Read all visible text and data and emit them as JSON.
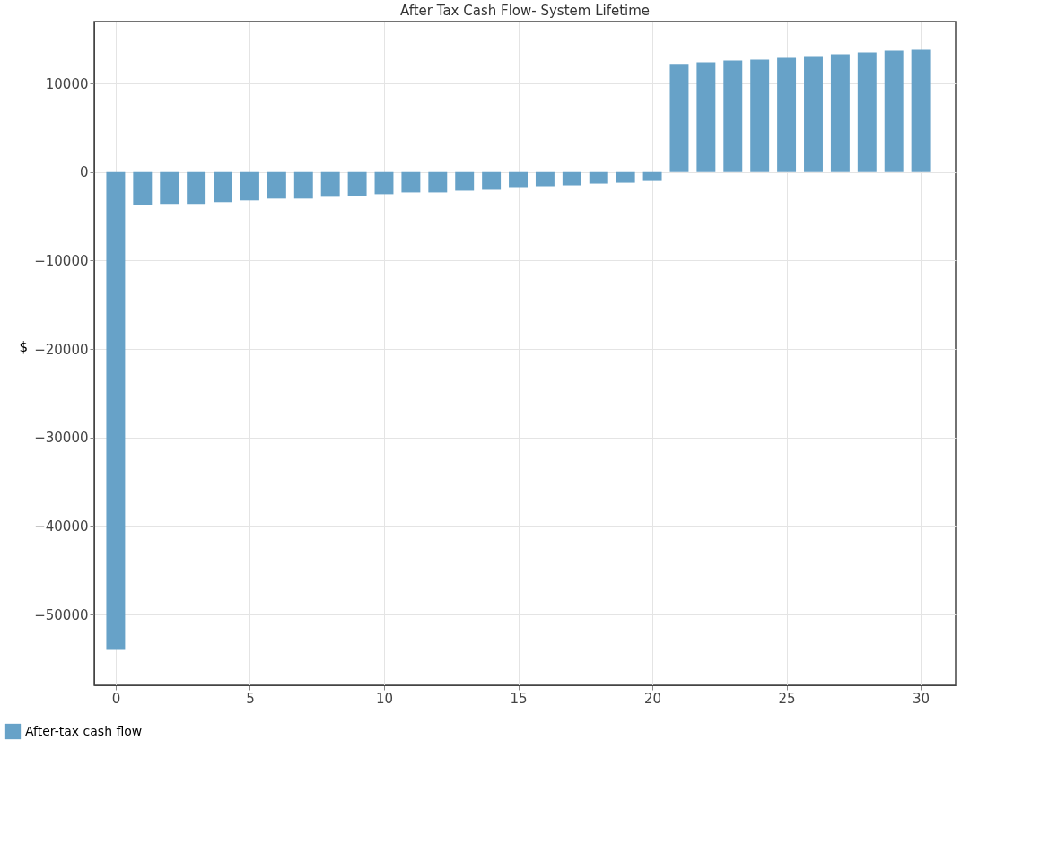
{
  "chart_data": {
    "type": "bar",
    "title": "After Tax Cash Flow- System Lifetime",
    "ylabel": "$",
    "x": [
      0,
      1,
      2,
      3,
      4,
      5,
      6,
      7,
      8,
      9,
      10,
      11,
      12,
      13,
      14,
      15,
      16,
      17,
      18,
      19,
      20,
      21,
      22,
      23,
      24,
      25,
      26,
      27,
      28,
      29,
      30
    ],
    "series": [
      {
        "name": "After-tax cash flow",
        "color": "#67a2c8",
        "values": [
          -54000,
          -3700,
          -3600,
          -3600,
          -3400,
          -3200,
          -3000,
          -3000,
          -2800,
          -2700,
          -2500,
          -2300,
          -2300,
          -2100,
          -2000,
          -1800,
          -1600,
          -1500,
          -1300,
          -1200,
          -1000,
          12200,
          12400,
          12600,
          12700,
          12900,
          13100,
          13300,
          13500,
          13700,
          13800
        ]
      }
    ],
    "xlim": [
      -0.8,
      31.3
    ],
    "xticks": [
      0,
      5,
      10,
      15,
      20,
      25,
      30
    ],
    "ylim": [
      -58000,
      17000
    ],
    "yticks": [
      -50000,
      -40000,
      -30000,
      -20000,
      -10000,
      0,
      10000
    ],
    "grid": true,
    "legend": "bottom left"
  }
}
